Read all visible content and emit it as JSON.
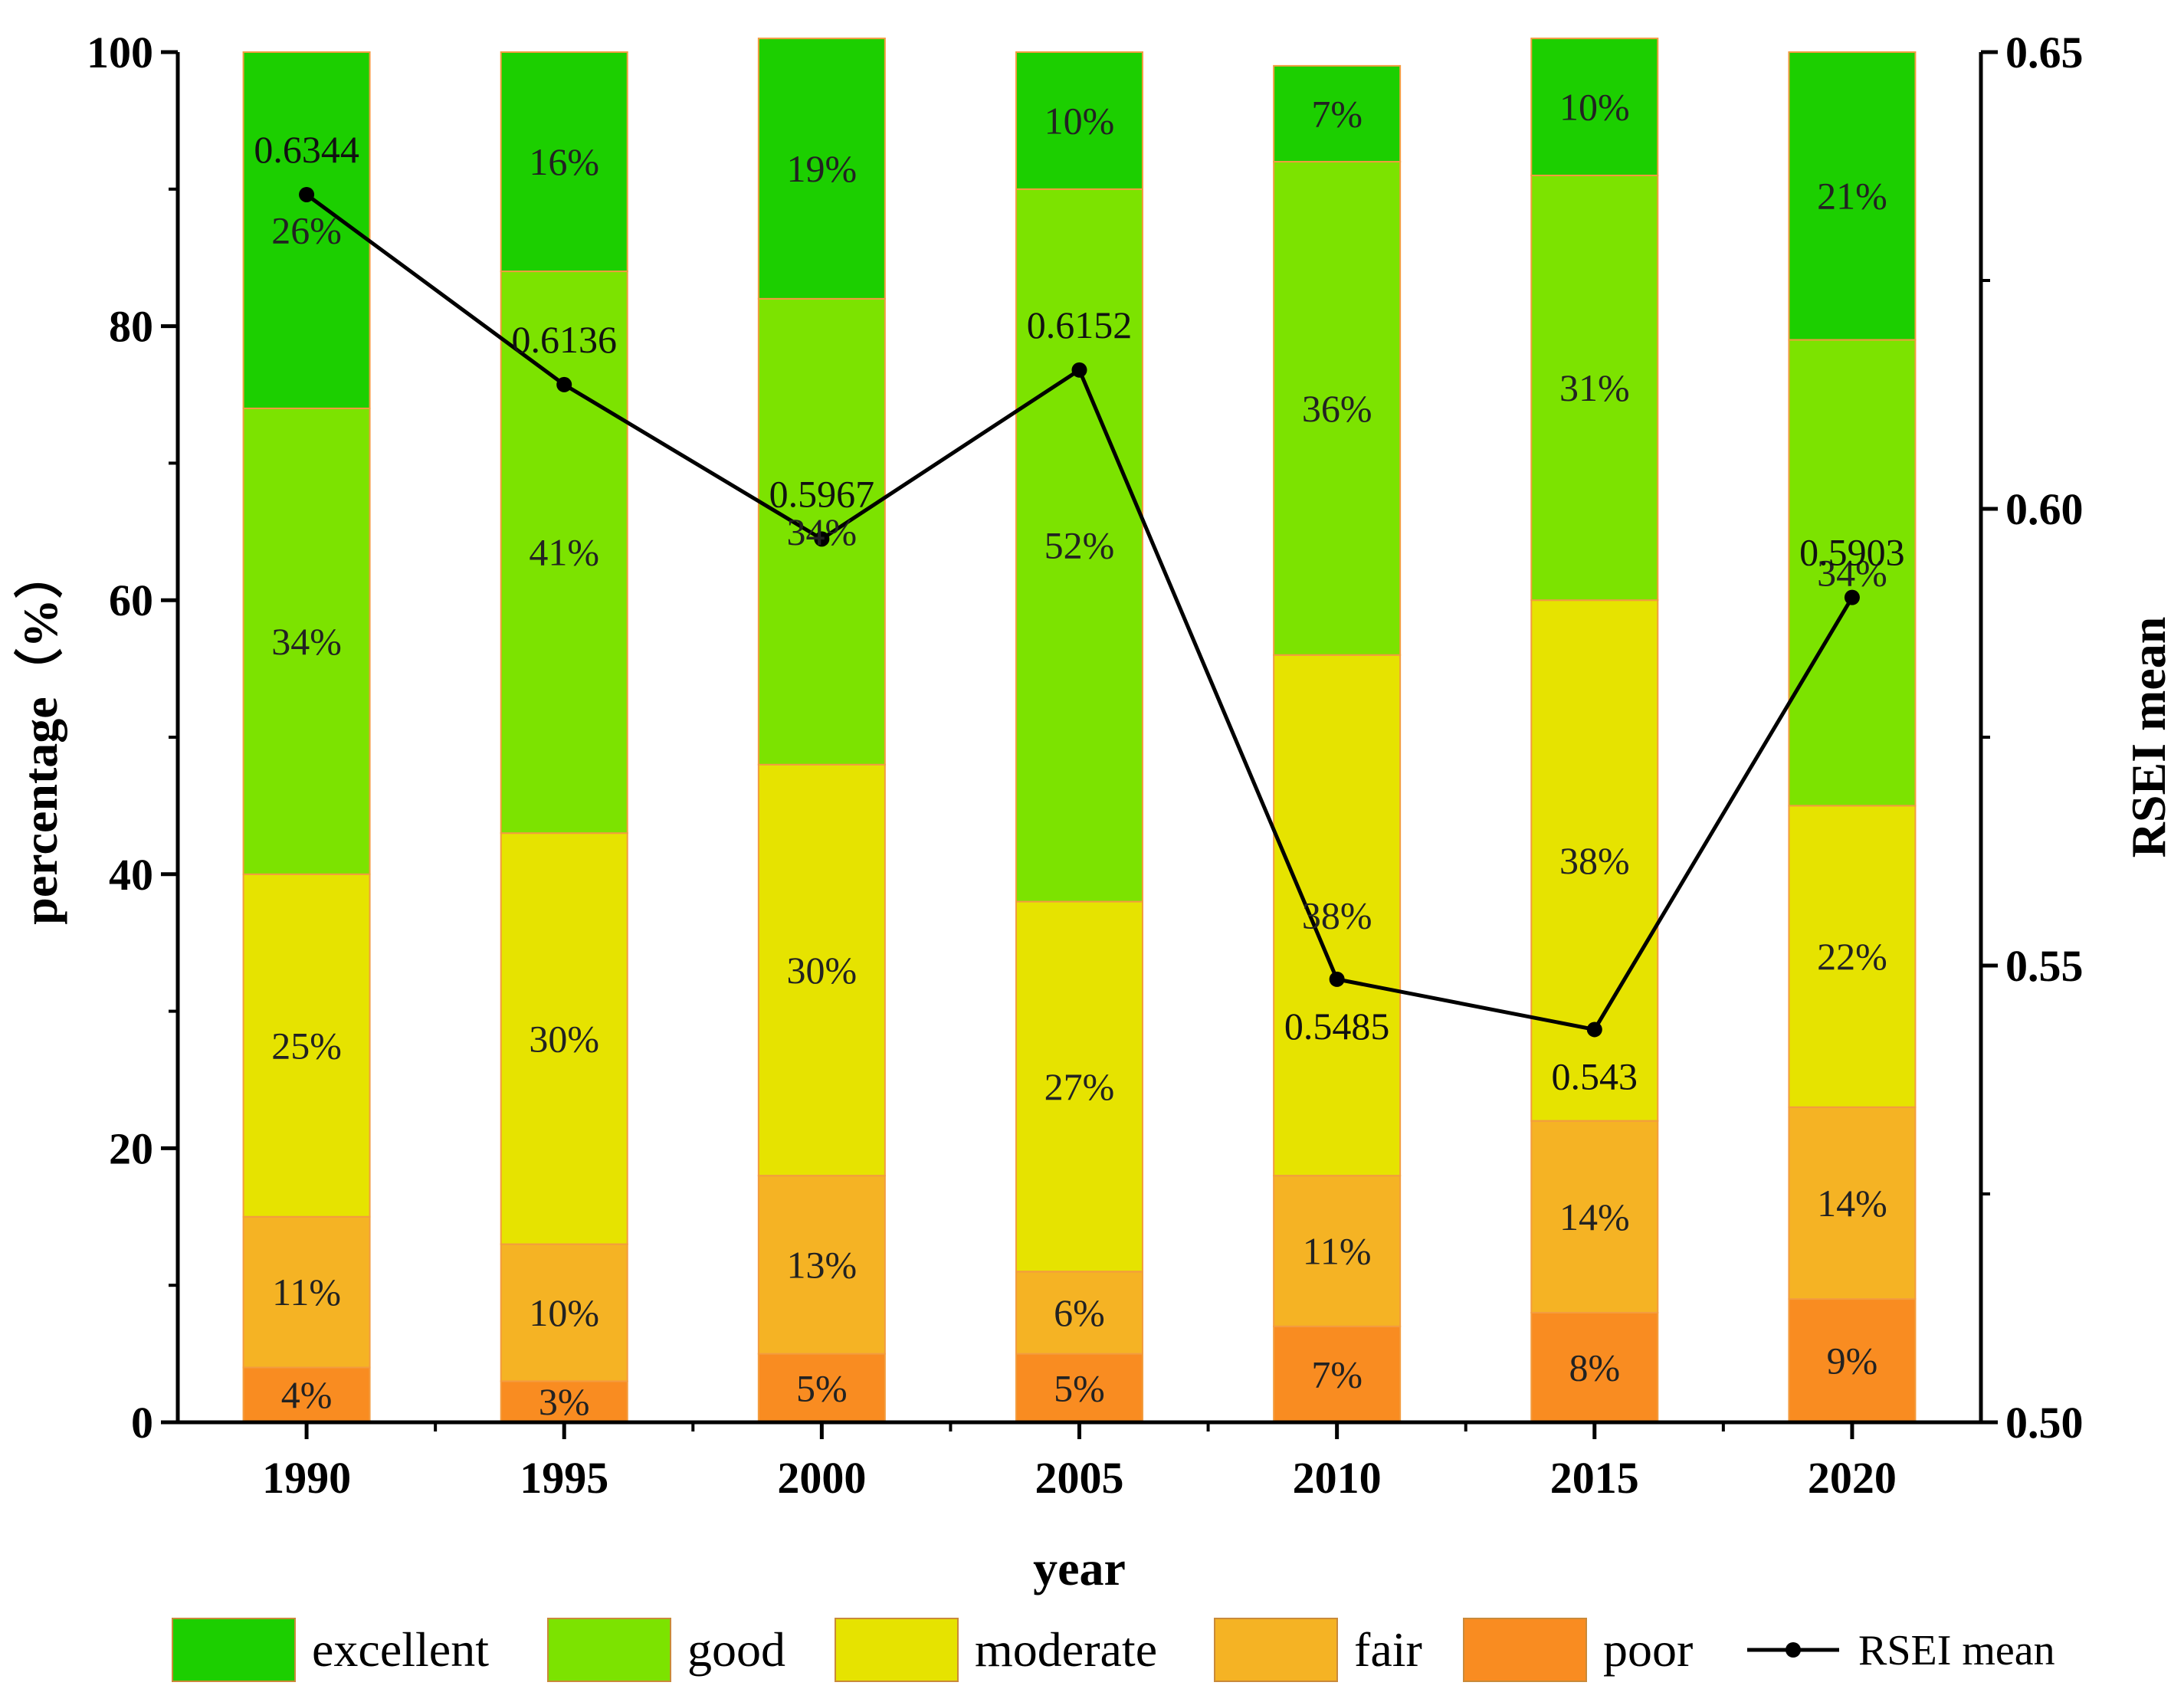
{
  "chart_data": {
    "type": "bar",
    "stacked": true,
    "categories": [
      "1990",
      "1995",
      "2000",
      "2005",
      "2010",
      "2015",
      "2020"
    ],
    "xlabel": "year",
    "ylabel": "percentage（%）",
    "ylim": [
      0,
      100
    ],
    "yticks": [
      "0",
      "20",
      "40",
      "60",
      "80",
      "100"
    ],
    "y2label": "RSEI mean",
    "y2lim": [
      0.5,
      0.65
    ],
    "y2ticks": [
      "0.50",
      "0.55",
      "0.60",
      "0.65"
    ],
    "grid": false,
    "legend_position": "bottom",
    "series": [
      {
        "name": "poor",
        "color": "#f98c21",
        "values": [
          4,
          3,
          5,
          5,
          7,
          8,
          9
        ],
        "labels": [
          "4%",
          "3%",
          "5%",
          "5%",
          "7%",
          "8%",
          "9%"
        ]
      },
      {
        "name": "fair",
        "color": "#f5b324",
        "values": [
          11,
          10,
          13,
          6,
          11,
          14,
          14
        ],
        "labels": [
          "11%",
          "10%",
          "13%",
          "6%",
          "11%",
          "14%",
          "14%"
        ]
      },
      {
        "name": "moderate",
        "color": "#e6e300",
        "values": [
          25,
          30,
          30,
          27,
          38,
          38,
          22
        ],
        "labels": [
          "25%",
          "30%",
          "30%",
          "27%",
          "38%",
          "38%",
          "22%"
        ]
      },
      {
        "name": "good",
        "color": "#7ce300",
        "values": [
          34,
          41,
          34,
          52,
          36,
          31,
          34
        ],
        "labels": [
          "34%",
          "41%",
          "34%",
          "52%",
          "36%",
          "31%",
          "34%"
        ]
      },
      {
        "name": "excellent",
        "color": "#1ccf00",
        "values": [
          26,
          16,
          19,
          10,
          7,
          10,
          21
        ],
        "labels": [
          "26%",
          "16%",
          "19%",
          "10%",
          "7%",
          "10%",
          "21%"
        ]
      }
    ],
    "line_series": {
      "name": "RSEI mean",
      "axis": "right",
      "values": [
        0.6344,
        0.6136,
        0.5967,
        0.6152,
        0.5485,
        0.543,
        0.5903
      ],
      "labels": [
        "0.6344",
        "0.6136",
        "0.5967",
        "0.6152",
        "0.5485",
        "0.543",
        "0.5903"
      ]
    },
    "legend": [
      "excellent",
      "good",
      "moderate",
      "fair",
      "poor",
      "RSEI mean"
    ]
  }
}
